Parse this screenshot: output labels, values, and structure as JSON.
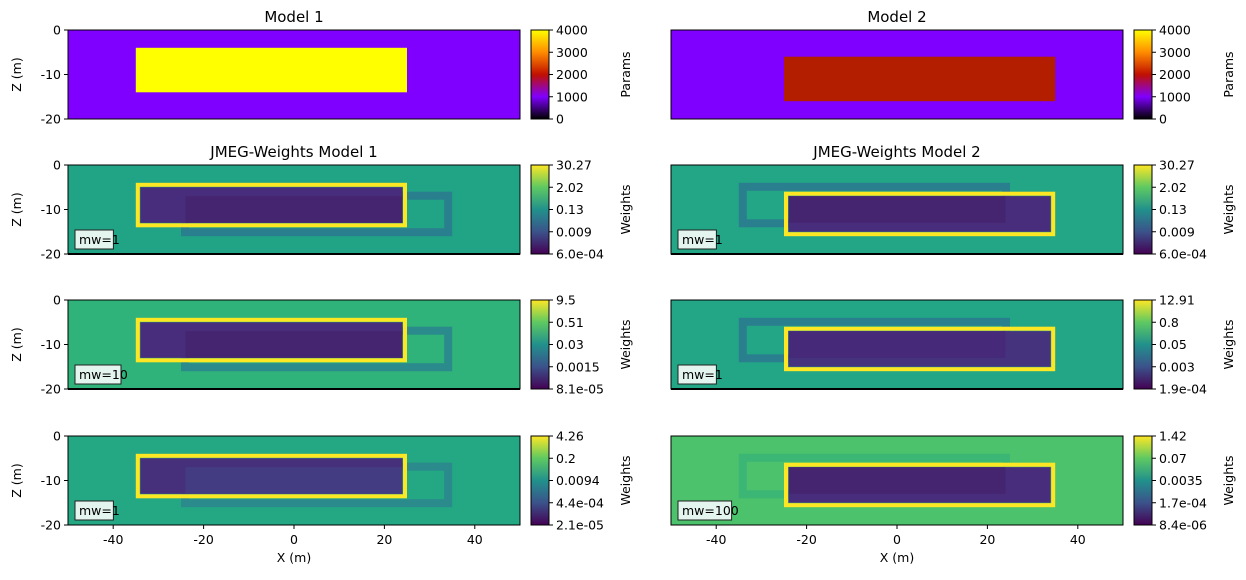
{
  "chart_data": [
    {
      "type": "heatmap",
      "title": "Model 1",
      "ylabel": "Z (m)",
      "xlabel": "",
      "show_xticks": false,
      "xlim": [
        -50,
        50
      ],
      "ylim": [
        -20,
        0
      ],
      "yticks": [
        0,
        -10,
        -20
      ],
      "background": "#7f00ff",
      "rects": [
        {
          "x": [
            -35,
            25
          ],
          "z": [
            -14,
            -4
          ],
          "color": "#ffff00"
        }
      ],
      "colorbar": {
        "label": "Params",
        "ticks": [
          "4000",
          "3000",
          "2000",
          "1000",
          "0"
        ],
        "gradient": [
          "#ffff00",
          "#ff8c00",
          "#c01000",
          "#7f00ff",
          "#000000"
        ]
      }
    },
    {
      "type": "heatmap",
      "title": "Model 2",
      "ylabel": "",
      "xlabel": "",
      "show_xticks": false,
      "xlim": [
        -50,
        50
      ],
      "ylim": [
        -20,
        0
      ],
      "yticks": [],
      "background": "#7f00ff",
      "rects": [
        {
          "x": [
            -25,
            35
          ],
          "z": [
            -16,
            -6
          ],
          "color": "#b41e00"
        }
      ],
      "colorbar": {
        "label": "Params",
        "ticks": [
          "4000",
          "3000",
          "2000",
          "1000",
          "0"
        ],
        "gradient": [
          "#ffff00",
          "#ff8c00",
          "#c01000",
          "#7f00ff",
          "#000000"
        ]
      }
    },
    {
      "type": "heatmap",
      "title": "JMEG-Weights Model 1",
      "ylabel": "Z (m)",
      "xlabel": "",
      "show_xticks": false,
      "xlim": [
        -50,
        50
      ],
      "ylim": [
        -20,
        0
      ],
      "yticks": [
        0,
        -10,
        -20
      ],
      "background": "#21a386",
      "ghost": {
        "x": [
          -25,
          35
        ],
        "z": [
          -16,
          -6
        ],
        "color": "#2a7f8e"
      },
      "inner": {
        "x": [
          -34,
          24
        ],
        "z": [
          -13,
          -5
        ],
        "color": "#472d7b"
      },
      "overlap": {
        "x": [
          -24,
          24
        ],
        "z": [
          -13,
          -7
        ],
        "color": "#46246e"
      },
      "outline": {
        "x": [
          -35,
          25
        ],
        "z": [
          -14,
          -4
        ],
        "color": "#fde725"
      },
      "label": "mw=1",
      "colorbar": {
        "label": "Weights",
        "ticks": [
          "30.27",
          "2.02",
          "0.13",
          "0.009",
          "6.0e-04"
        ],
        "gradient": [
          "#fde725",
          "#5ec962",
          "#21918c",
          "#3b528b",
          "#440154"
        ]
      }
    },
    {
      "type": "heatmap",
      "title": "JMEG-Weights Model 2",
      "ylabel": "",
      "xlabel": "",
      "show_xticks": false,
      "xlim": [
        -50,
        50
      ],
      "ylim": [
        -20,
        0
      ],
      "yticks": [],
      "background": "#22a685",
      "ghost": {
        "x": [
          -35,
          25
        ],
        "z": [
          -14,
          -4
        ],
        "color": "#2a7f8e"
      },
      "inner": {
        "x": [
          -24,
          34
        ],
        "z": [
          -15,
          -7
        ],
        "color": "#472d7b"
      },
      "overlap": {
        "x": [
          -24,
          24
        ],
        "z": [
          -13,
          -7
        ],
        "color": "#46246e"
      },
      "outline": {
        "x": [
          -25,
          35
        ],
        "z": [
          -16,
          -6
        ],
        "color": "#fde725"
      },
      "label": "mw=1",
      "colorbar": {
        "label": "Weights",
        "ticks": [
          "30.27",
          "2.02",
          "0.13",
          "0.009",
          "6.0e-04"
        ],
        "gradient": [
          "#fde725",
          "#5ec962",
          "#21918c",
          "#3b528b",
          "#440154"
        ]
      }
    },
    {
      "type": "heatmap",
      "title": "",
      "ylabel": "Z (m)",
      "xlabel": "",
      "show_xticks": false,
      "xlim": [
        -50,
        50
      ],
      "ylim": [
        -20,
        0
      ],
      "yticks": [
        0,
        -10,
        -20
      ],
      "background": "#2fb37b",
      "ghost": {
        "x": [
          -25,
          35
        ],
        "z": [
          -16,
          -6
        ],
        "color": "#2a8a8c"
      },
      "inner": {
        "x": [
          -34,
          24
        ],
        "z": [
          -13,
          -5
        ],
        "color": "#472d7b"
      },
      "overlap": {
        "x": [
          -24,
          24
        ],
        "z": [
          -13,
          -7
        ],
        "color": "#46246e"
      },
      "outline": {
        "x": [
          -35,
          25
        ],
        "z": [
          -14,
          -4
        ],
        "color": "#fde725"
      },
      "label": "mw=10",
      "colorbar": {
        "label": "Weights",
        "ticks": [
          "9.5",
          "0.51",
          "0.03",
          "0.0015",
          "8.1e-05"
        ],
        "gradient": [
          "#fde725",
          "#5ec962",
          "#21918c",
          "#3b528b",
          "#440154"
        ]
      }
    },
    {
      "type": "heatmap",
      "title": "",
      "ylabel": "",
      "xlabel": "",
      "show_xticks": false,
      "xlim": [
        -50,
        50
      ],
      "ylim": [
        -20,
        0
      ],
      "yticks": [],
      "background": "#22a685",
      "ghost": {
        "x": [
          -35,
          25
        ],
        "z": [
          -14,
          -4
        ],
        "color": "#2a7f8e"
      },
      "inner": {
        "x": [
          -24,
          34
        ],
        "z": [
          -15,
          -7
        ],
        "color": "#46337e"
      },
      "overlap": {
        "x": [
          -24,
          24
        ],
        "z": [
          -13,
          -7
        ],
        "color": "#482878"
      },
      "outline": {
        "x": [
          -25,
          35
        ],
        "z": [
          -16,
          -6
        ],
        "color": "#fde725"
      },
      "label": "mw=1",
      "colorbar": {
        "label": "Weights",
        "ticks": [
          "12.91",
          "0.8",
          "0.05",
          "0.003",
          "1.9e-04"
        ],
        "gradient": [
          "#fde725",
          "#5ec962",
          "#21918c",
          "#3b528b",
          "#440154"
        ]
      }
    },
    {
      "type": "heatmap",
      "title": "",
      "ylabel": "Z (m)",
      "xlabel": "X (m)",
      "show_xticks": true,
      "xlim": [
        -50,
        50
      ],
      "xticks": [
        -40,
        -20,
        0,
        20,
        40
      ],
      "ylim": [
        -20,
        0
      ],
      "yticks": [
        0,
        -10,
        -20
      ],
      "background": "#24a884",
      "ghost": {
        "x": [
          -25,
          35
        ],
        "z": [
          -16,
          -6
        ],
        "color": "#2a8a8c"
      },
      "inner": {
        "x": [
          -34,
          24
        ],
        "z": [
          -13,
          -5
        ],
        "color": "#46307c"
      },
      "overlap": {
        "x": [
          -24,
          24
        ],
        "z": [
          -13,
          -7
        ],
        "color": "#433e85"
      },
      "outline": {
        "x": [
          -35,
          25
        ],
        "z": [
          -14,
          -4
        ],
        "color": "#fde725"
      },
      "label": "mw=1",
      "colorbar": {
        "label": "Weights",
        "ticks": [
          "4.26",
          "0.2",
          "0.0094",
          "4.4e-04",
          "2.1e-05"
        ],
        "gradient": [
          "#fde725",
          "#5ec962",
          "#21918c",
          "#3b528b",
          "#440154"
        ]
      }
    },
    {
      "type": "heatmap",
      "title": "",
      "ylabel": "",
      "xlabel": "X (m)",
      "show_xticks": true,
      "xlim": [
        -50,
        50
      ],
      "xticks": [
        -40,
        -20,
        0,
        20,
        40
      ],
      "ylim": [
        -20,
        0
      ],
      "yticks": [],
      "background": "#4cc26c",
      "ghost": {
        "x": [
          -35,
          25
        ],
        "z": [
          -14,
          -4
        ],
        "color": "#3cb675"
      },
      "inner": {
        "x": [
          -24,
          34
        ],
        "z": [
          -15,
          -7
        ],
        "color": "#472d7b"
      },
      "overlap": {
        "x": [
          -24,
          24
        ],
        "z": [
          -13,
          -7
        ],
        "color": "#46246e"
      },
      "outline": {
        "x": [
          -25,
          35
        ],
        "z": [
          -16,
          -6
        ],
        "color": "#fde725"
      },
      "label": "mw=100",
      "colorbar": {
        "label": "Weights",
        "ticks": [
          "1.42",
          "0.07",
          "0.0035",
          "1.7e-04",
          "8.4e-06"
        ],
        "gradient": [
          "#fde725",
          "#5ec962",
          "#21918c",
          "#3b528b",
          "#440154"
        ]
      }
    }
  ]
}
